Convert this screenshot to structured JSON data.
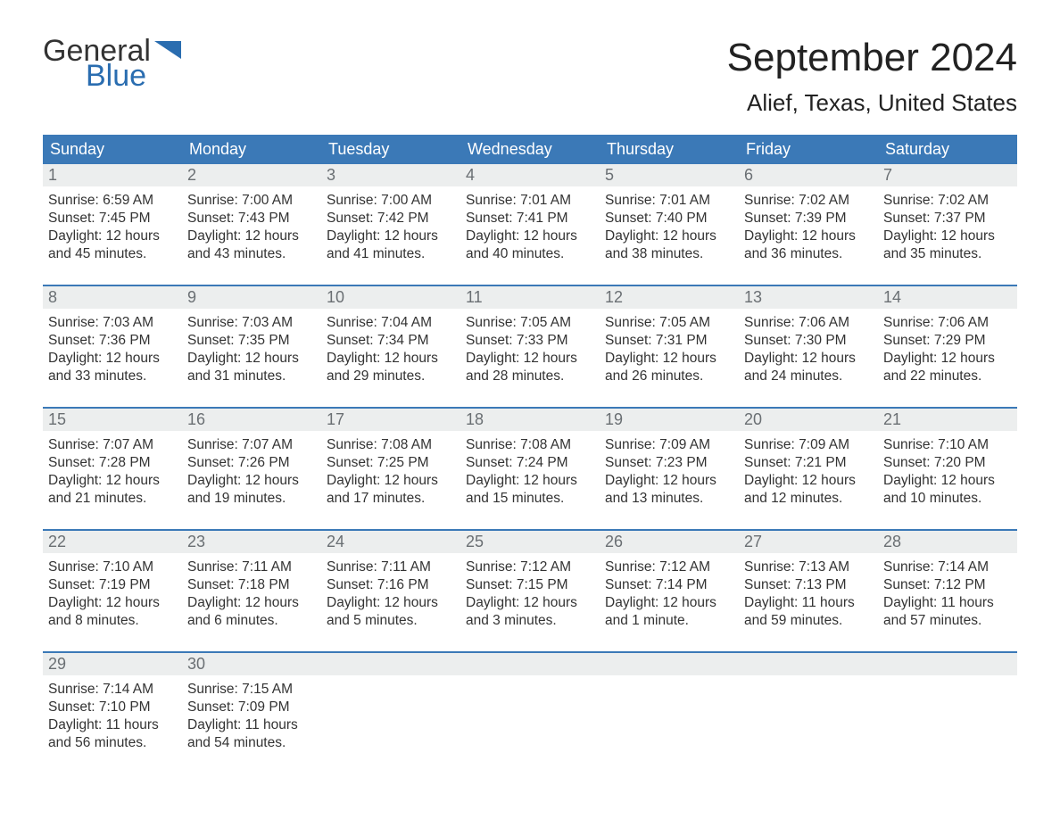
{
  "logo": {
    "line1": "General",
    "line2": "Blue",
    "color": "#2a6db0",
    "text_color": "#333333"
  },
  "title": "September 2024",
  "location": "Alief, Texas, United States",
  "colors": {
    "header_bg": "#3b79b7",
    "header_text": "#ffffff",
    "daynum_bg": "#eceeee",
    "daynum_text": "#6a6f73",
    "rule": "#3b79b7",
    "body_text": "#333333",
    "background": "#ffffff"
  },
  "weekdays": [
    "Sunday",
    "Monday",
    "Tuesday",
    "Wednesday",
    "Thursday",
    "Friday",
    "Saturday"
  ],
  "days": [
    {
      "n": "1",
      "sunrise": "6:59 AM",
      "sunset": "7:45 PM",
      "dl": "Daylight: 12 hours and 45 minutes."
    },
    {
      "n": "2",
      "sunrise": "7:00 AM",
      "sunset": "7:43 PM",
      "dl": "Daylight: 12 hours and 43 minutes."
    },
    {
      "n": "3",
      "sunrise": "7:00 AM",
      "sunset": "7:42 PM",
      "dl": "Daylight: 12 hours and 41 minutes."
    },
    {
      "n": "4",
      "sunrise": "7:01 AM",
      "sunset": "7:41 PM",
      "dl": "Daylight: 12 hours and 40 minutes."
    },
    {
      "n": "5",
      "sunrise": "7:01 AM",
      "sunset": "7:40 PM",
      "dl": "Daylight: 12 hours and 38 minutes."
    },
    {
      "n": "6",
      "sunrise": "7:02 AM",
      "sunset": "7:39 PM",
      "dl": "Daylight: 12 hours and 36 minutes."
    },
    {
      "n": "7",
      "sunrise": "7:02 AM",
      "sunset": "7:37 PM",
      "dl": "Daylight: 12 hours and 35 minutes."
    },
    {
      "n": "8",
      "sunrise": "7:03 AM",
      "sunset": "7:36 PM",
      "dl": "Daylight: 12 hours and 33 minutes."
    },
    {
      "n": "9",
      "sunrise": "7:03 AM",
      "sunset": "7:35 PM",
      "dl": "Daylight: 12 hours and 31 minutes."
    },
    {
      "n": "10",
      "sunrise": "7:04 AM",
      "sunset": "7:34 PM",
      "dl": "Daylight: 12 hours and 29 minutes."
    },
    {
      "n": "11",
      "sunrise": "7:05 AM",
      "sunset": "7:33 PM",
      "dl": "Daylight: 12 hours and 28 minutes."
    },
    {
      "n": "12",
      "sunrise": "7:05 AM",
      "sunset": "7:31 PM",
      "dl": "Daylight: 12 hours and 26 minutes."
    },
    {
      "n": "13",
      "sunrise": "7:06 AM",
      "sunset": "7:30 PM",
      "dl": "Daylight: 12 hours and 24 minutes."
    },
    {
      "n": "14",
      "sunrise": "7:06 AM",
      "sunset": "7:29 PM",
      "dl": "Daylight: 12 hours and 22 minutes."
    },
    {
      "n": "15",
      "sunrise": "7:07 AM",
      "sunset": "7:28 PM",
      "dl": "Daylight: 12 hours and 21 minutes."
    },
    {
      "n": "16",
      "sunrise": "7:07 AM",
      "sunset": "7:26 PM",
      "dl": "Daylight: 12 hours and 19 minutes."
    },
    {
      "n": "17",
      "sunrise": "7:08 AM",
      "sunset": "7:25 PM",
      "dl": "Daylight: 12 hours and 17 minutes."
    },
    {
      "n": "18",
      "sunrise": "7:08 AM",
      "sunset": "7:24 PM",
      "dl": "Daylight: 12 hours and 15 minutes."
    },
    {
      "n": "19",
      "sunrise": "7:09 AM",
      "sunset": "7:23 PM",
      "dl": "Daylight: 12 hours and 13 minutes."
    },
    {
      "n": "20",
      "sunrise": "7:09 AM",
      "sunset": "7:21 PM",
      "dl": "Daylight: 12 hours and 12 minutes."
    },
    {
      "n": "21",
      "sunrise": "7:10 AM",
      "sunset": "7:20 PM",
      "dl": "Daylight: 12 hours and 10 minutes."
    },
    {
      "n": "22",
      "sunrise": "7:10 AM",
      "sunset": "7:19 PM",
      "dl": "Daylight: 12 hours and 8 minutes."
    },
    {
      "n": "23",
      "sunrise": "7:11 AM",
      "sunset": "7:18 PM",
      "dl": "Daylight: 12 hours and 6 minutes."
    },
    {
      "n": "24",
      "sunrise": "7:11 AM",
      "sunset": "7:16 PM",
      "dl": "Daylight: 12 hours and 5 minutes."
    },
    {
      "n": "25",
      "sunrise": "7:12 AM",
      "sunset": "7:15 PM",
      "dl": "Daylight: 12 hours and 3 minutes."
    },
    {
      "n": "26",
      "sunrise": "7:12 AM",
      "sunset": "7:14 PM",
      "dl": "Daylight: 12 hours and 1 minute."
    },
    {
      "n": "27",
      "sunrise": "7:13 AM",
      "sunset": "7:13 PM",
      "dl": "Daylight: 11 hours and 59 minutes."
    },
    {
      "n": "28",
      "sunrise": "7:14 AM",
      "sunset": "7:12 PM",
      "dl": "Daylight: 11 hours and 57 minutes."
    },
    {
      "n": "29",
      "sunrise": "7:14 AM",
      "sunset": "7:10 PM",
      "dl": "Daylight: 11 hours and 56 minutes."
    },
    {
      "n": "30",
      "sunrise": "7:15 AM",
      "sunset": "7:09 PM",
      "dl": "Daylight: 11 hours and 54 minutes."
    }
  ],
  "labels": {
    "sunrise": "Sunrise:",
    "sunset": "Sunset:"
  },
  "layout": {
    "columns": 7,
    "start_weekday_index": 0,
    "total_days": 30,
    "font_family": "Arial",
    "title_fontsize_pt": 33,
    "location_fontsize_pt": 20,
    "weekday_fontsize_pt": 14,
    "body_fontsize_pt": 12
  }
}
